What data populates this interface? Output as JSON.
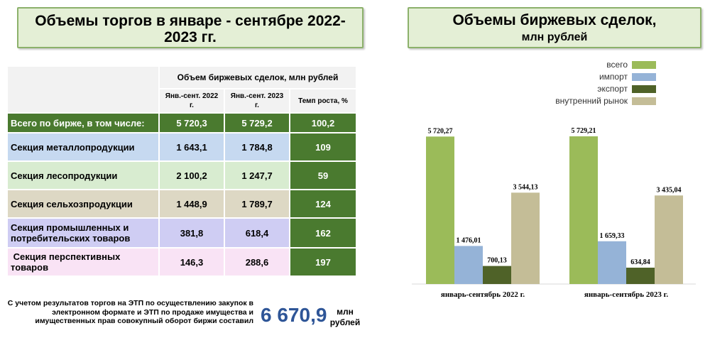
{
  "left_title": "Объемы торгов в январе - сентябре 2022-2023  гг.",
  "table": {
    "group_header": "Объем биржевых сделок, млн рублей",
    "col_2022": "Янв.-сент. 2022 г.",
    "col_2023": "Янв.-сент. 2023 г.",
    "col_rate": "Темп роста, %",
    "rows": [
      {
        "label": "Всего по бирже, в том числе:",
        "v2022": "5 720,3",
        "v2023": "5 729,2",
        "rate": "100,2"
      },
      {
        "label": "Секция металлопродукции",
        "v2022": "1 643,1",
        "v2023": "1 784,8",
        "rate": "109"
      },
      {
        "label": "Секция лесопродукции",
        "v2022": "2 100,2",
        "v2023": "1 247,7",
        "rate": "59"
      },
      {
        "label": "Секция сельхозпродукции",
        "v2022": "1 448,9",
        "v2023": "1 789,7",
        "rate": "124"
      },
      {
        "label": "Секция промышленных и потребительских товаров",
        "v2022": "381,8",
        "v2023": "618,4",
        "rate": "162"
      },
      {
        "label": " Секция перспективных товаров",
        "v2022": "146,3",
        "v2023": "288,6",
        "rate": "197"
      }
    ]
  },
  "footnote": "С учетом результатов торгов на ЭТП по осуществлению закупок в электронном формате и ЭТП по продаже имущества и имущественных прав совокупный оборот биржи составил",
  "total_value": "6 670,9",
  "total_unit": "млн рублей",
  "right_title": "Объемы биржевых сделок,",
  "right_subtitle": "млн рублей",
  "chart_data": {
    "type": "bar",
    "title": "Объемы биржевых сделок, млн рублей",
    "categories": [
      "январь-сентябрь 2022 г.",
      "январь-сентябрь 2023 г."
    ],
    "series": [
      {
        "name": "всего",
        "color": "#9bbb59",
        "values": [
          5720.27,
          5729.21
        ],
        "labels": [
          "5 720,27",
          "5 729,21"
        ]
      },
      {
        "name": "импорт",
        "color": "#95b3d7",
        "values": [
          1476.01,
          1659.33
        ],
        "labels": [
          "1 476,01",
          "1 659,33"
        ]
      },
      {
        "name": "экспорт",
        "color": "#4f6228",
        "values": [
          700.13,
          634.84
        ],
        "labels": [
          "700,13",
          "634,84"
        ]
      },
      {
        "name": "внутренний рынок",
        "color": "#c4bd97",
        "values": [
          3544.13,
          3435.04
        ],
        "labels": [
          "3 544,13",
          "3 435,04"
        ]
      }
    ],
    "ylim": [
      0,
      6500
    ],
    "legend_position": "top-right",
    "grid": false
  }
}
